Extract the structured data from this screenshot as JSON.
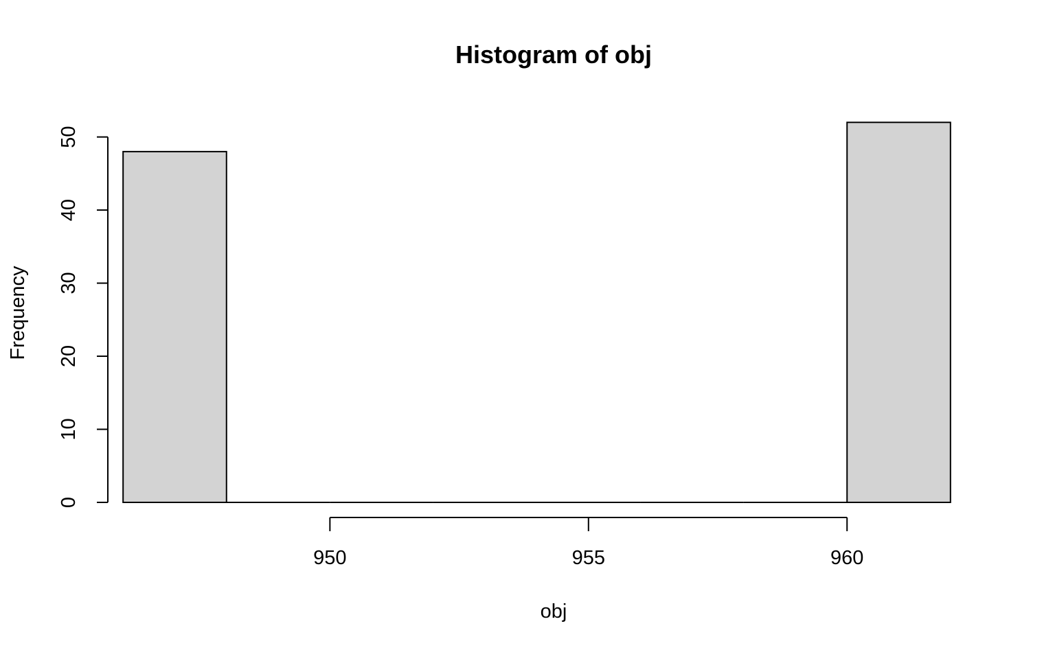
{
  "chart_data": {
    "type": "bar",
    "title": "Histogram of obj",
    "xlabel": "obj",
    "ylabel": "Frequency",
    "bins": [
      {
        "start": 946,
        "end": 948,
        "count": 48
      },
      {
        "start": 948,
        "end": 950,
        "count": 0
      },
      {
        "start": 950,
        "end": 952,
        "count": 0
      },
      {
        "start": 952,
        "end": 954,
        "count": 0
      },
      {
        "start": 954,
        "end": 956,
        "count": 0
      },
      {
        "start": 956,
        "end": 958,
        "count": 0
      },
      {
        "start": 958,
        "end": 960,
        "count": 0
      },
      {
        "start": 960,
        "end": 962,
        "count": 52
      }
    ],
    "xticks": [
      950,
      955,
      960
    ],
    "yticks": [
      0,
      10,
      20,
      30,
      40,
      50
    ],
    "xlim": [
      945.36,
      962.64
    ],
    "ylim": [
      0,
      54
    ],
    "bar_color": "#d3d3d3",
    "grid": false,
    "legend": "none"
  }
}
